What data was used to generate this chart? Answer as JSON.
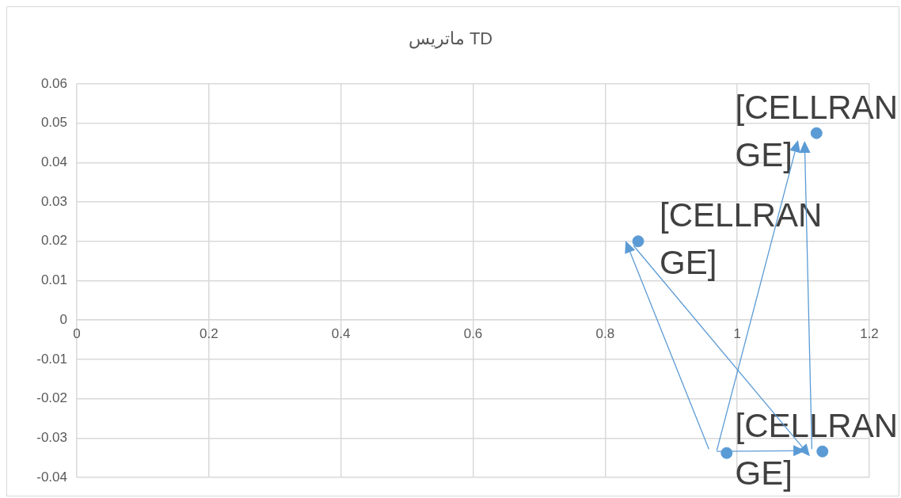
{
  "chart_data": {
    "type": "scatter",
    "title": "ماتريس TD",
    "series": [
      {
        "color": "#5b9bd5",
        "x": [
          0.85,
          1.12,
          0.984,
          1.129
        ],
        "values": [
          0.02,
          0.0475,
          -0.0338,
          -0.0334
        ]
      }
    ],
    "xlim": [
      0,
      1.2
    ],
    "xticks": [
      0,
      0.2,
      0.4,
      0.6,
      0.8,
      1,
      1.2
    ],
    "ylim": [
      -0.04,
      0.06
    ],
    "yticks": [
      -0.04,
      -0.03,
      -0.02,
      -0.01,
      0,
      0.01,
      0.02,
      0.03,
      0.04,
      0.05,
      0.06
    ],
    "grid": true,
    "legend": false,
    "marker": "circle",
    "annotations": [
      {
        "text": "[CELLRANGE]",
        "x": 0.85,
        "y": 0.02
      },
      {
        "text": "[CELLRANGE]",
        "x": 1.12,
        "y": 0.0475
      },
      {
        "text": "[CELLRANGE]",
        "x": 1.129,
        "y": -0.0334
      }
    ]
  }
}
